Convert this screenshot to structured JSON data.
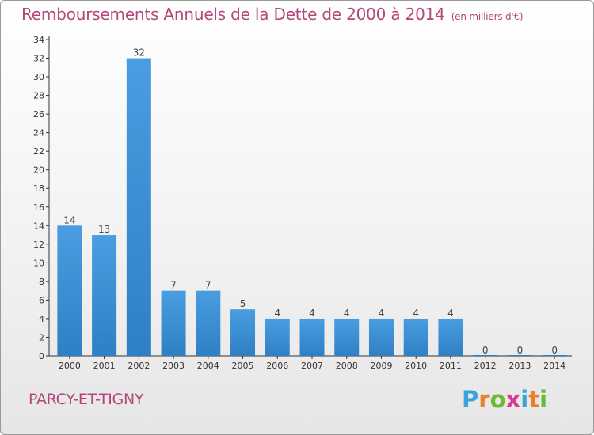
{
  "chart_data": {
    "type": "bar",
    "title": "Remboursements Annuels de la Dette de 2000 à 2014",
    "subtitle": "(en milliers d'€)",
    "categories": [
      "2000",
      "2001",
      "2002",
      "2003",
      "2004",
      "2005",
      "2006",
      "2007",
      "2008",
      "2009",
      "2010",
      "2011",
      "2012",
      "2013",
      "2014"
    ],
    "values": [
      14,
      13,
      32,
      7,
      7,
      5,
      4,
      4,
      4,
      4,
      4,
      4,
      0,
      0,
      0
    ],
    "ylim": [
      0,
      34
    ],
    "yticks": [
      0,
      2,
      4,
      6,
      8,
      10,
      12,
      14,
      16,
      18,
      20,
      22,
      24,
      26,
      28,
      30,
      32,
      34
    ],
    "grid": false,
    "bar_color": "#4a9de0",
    "bar_color_dark": "#2f7fc4"
  },
  "footer": {
    "commune": "PARCY-ET-TIGNY",
    "logo": "Proxiti"
  },
  "colors": {
    "title": "#b5467a",
    "logo_letters": [
      "#3aa3de",
      "#e8812b",
      "#6aba34",
      "#d93a8f",
      "#3aa3de",
      "#e8812b",
      "#6aba34"
    ]
  }
}
